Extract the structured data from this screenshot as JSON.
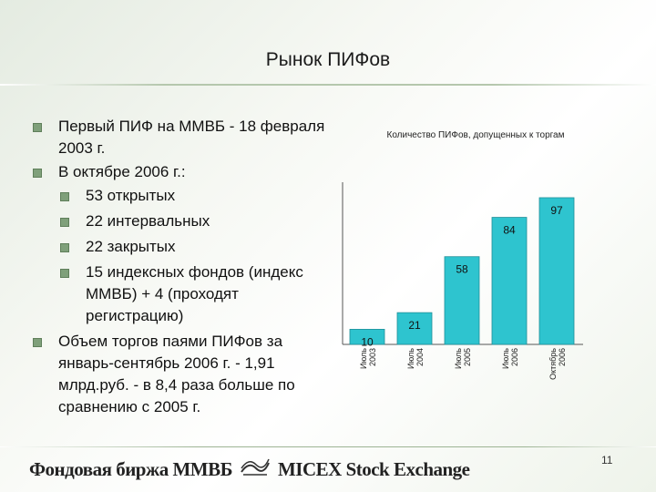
{
  "slide": {
    "title": "Рынок ПИФов",
    "page_number": "11"
  },
  "bullets": [
    {
      "level": 1,
      "text": "Первый ПИФ на ММВБ - 18 февраля 2003 г."
    },
    {
      "level": 1,
      "text": "В октябре 2006 г.:"
    },
    {
      "level": 2,
      "text": "53 открытых"
    },
    {
      "level": 2,
      "text": "22 интервальных"
    },
    {
      "level": 2,
      "text": "22 закрытых"
    },
    {
      "level": 2,
      "text": "15 индексных фондов (индекс ММВБ) + 4 (проходят регистрацию)"
    },
    {
      "level": 1,
      "text": "Объем торгов паями ПИФов за январь-сентябрь 2006 г. - 1,91 млрд.руб. - в 8,4 раза больше по сравнению с 2005 г."
    }
  ],
  "footer": {
    "logo_ru": "Фондовая биржа ММВБ",
    "logo_en": "MICEX Stock Exchange"
  },
  "colors": {
    "bar": "#2ec4cf",
    "bullet": "#7fa07a"
  },
  "chart_data": {
    "type": "bar",
    "title": "Количество ПИФов, допущенных к торгам",
    "categories": [
      "Июль 2003",
      "Июль 2004",
      "Июль 2005",
      "Июль 2006",
      "Октябрь 2006"
    ],
    "values": [
      10,
      21,
      58,
      84,
      97
    ],
    "ylim": [
      0,
      100
    ],
    "xlabel": "",
    "ylabel": "",
    "grid": false,
    "data_labels": true
  }
}
